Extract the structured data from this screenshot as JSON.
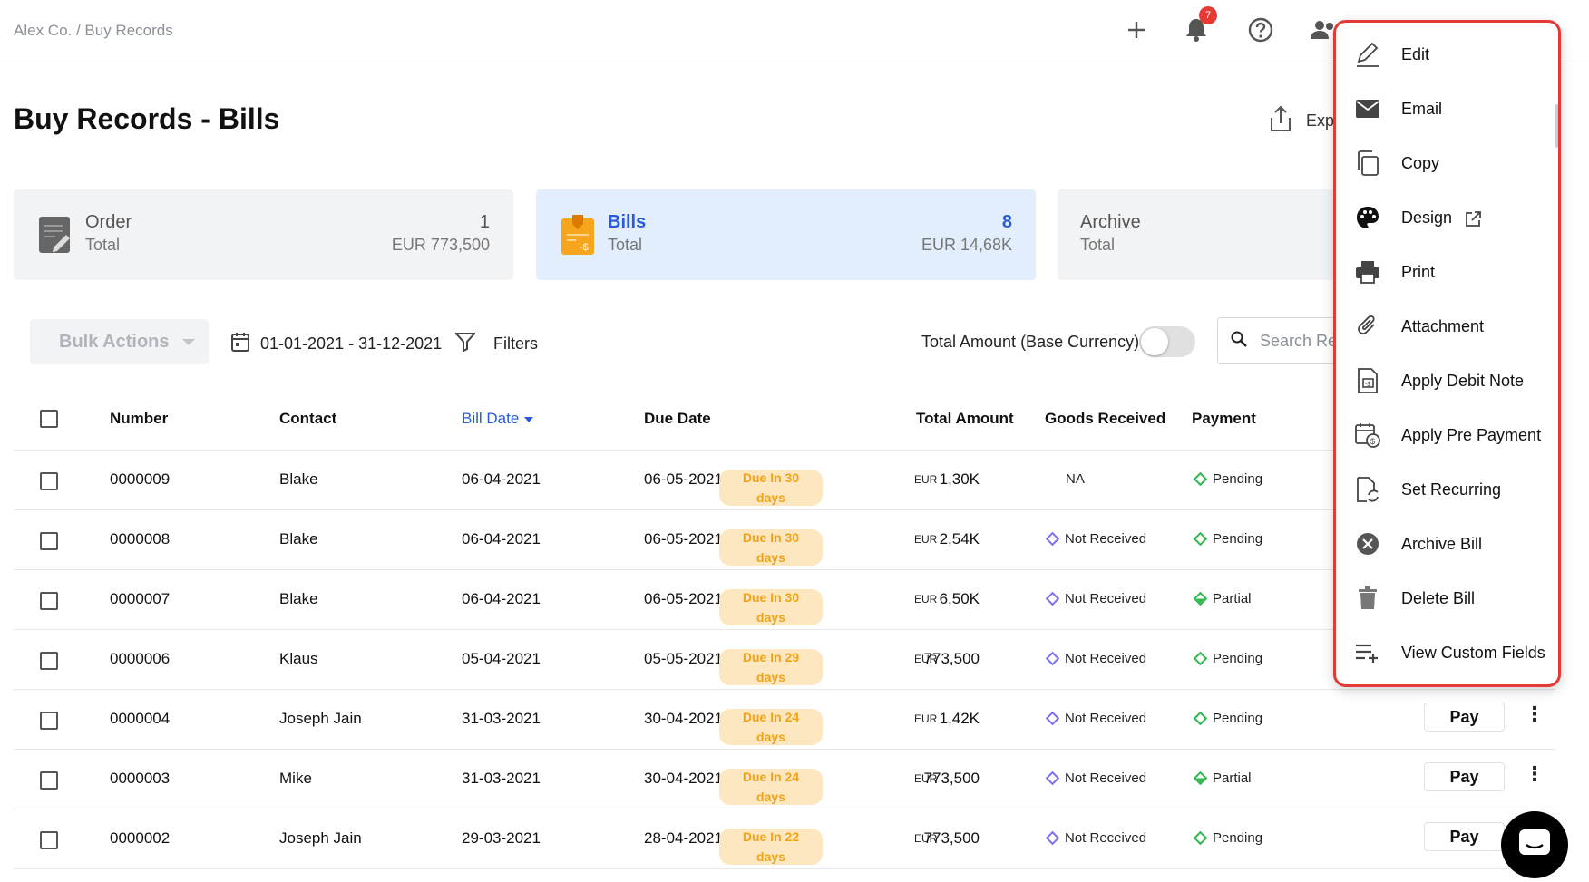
{
  "breadcrumb": "Alex Co. / Buy Records",
  "topbar": {
    "notifications_count": "7"
  },
  "page_title": "Buy Records - Bills",
  "export_label": "Exp",
  "cards": [
    {
      "name": "Order",
      "sub": "Total",
      "count": "1",
      "amount": "EUR 773,500"
    },
    {
      "name": "Bills",
      "sub": "Total",
      "count": "8",
      "amount": "EUR 14,68K"
    },
    {
      "name": "Archive",
      "sub": "Total"
    }
  ],
  "toolbar": {
    "bulk_actions": "Bulk Actions",
    "date_range": "01-01-2021 - 31-12-2021",
    "filters": "Filters",
    "toggle_label": "Total Amount (Base Currency)",
    "search_placeholder": "Search Re"
  },
  "table": {
    "headers": {
      "number": "Number",
      "contact": "Contact",
      "bill_date": "Bill Date",
      "due_date": "Due Date",
      "total_amount": "Total Amount",
      "goods_received": "Goods Received",
      "payment": "Payment"
    },
    "rows": [
      {
        "number": "0000009",
        "contact": "Blake",
        "bill_date": "06-04-2021",
        "due_date": "06-05-2021",
        "due_in": "Due In 30",
        "due_days": "days",
        "currency": "EUR",
        "amount": "1,30K",
        "goods": "NA",
        "payment": "Pending"
      },
      {
        "number": "0000008",
        "contact": "Blake",
        "bill_date": "06-04-2021",
        "due_date": "06-05-2021",
        "due_in": "Due In 30",
        "due_days": "days",
        "currency": "EUR",
        "amount": "2,54K",
        "goods": "Not Received",
        "payment": "Pending"
      },
      {
        "number": "0000007",
        "contact": "Blake",
        "bill_date": "06-04-2021",
        "due_date": "06-05-2021",
        "due_in": "Due In 30",
        "due_days": "days",
        "currency": "EUR",
        "amount": "6,50K",
        "goods": "Not Received",
        "payment": "Partial"
      },
      {
        "number": "0000006",
        "contact": "Klaus",
        "bill_date": "05-04-2021",
        "due_date": "05-05-2021",
        "due_in": "Due In 29",
        "due_days": "days",
        "currency": "EUR",
        "amount": "773,500",
        "goods": "Not Received",
        "payment": "Pending"
      },
      {
        "number": "0000004",
        "contact": "Joseph Jain",
        "bill_date": "31-03-2021",
        "due_date": "30-04-2021",
        "due_in": "Due In 24",
        "due_days": "days",
        "currency": "EUR",
        "amount": "1,42K",
        "goods": "Not Received",
        "payment": "Pending",
        "pay": "Pay"
      },
      {
        "number": "0000003",
        "contact": "Mike",
        "bill_date": "31-03-2021",
        "due_date": "30-04-2021",
        "due_in": "Due In 24",
        "due_days": "days",
        "currency": "EUR",
        "amount": "773,500",
        "goods": "Not Received",
        "payment": "Partial",
        "pay": "Pay"
      },
      {
        "number": "0000002",
        "contact": "Joseph Jain",
        "bill_date": "29-03-2021",
        "due_date": "28-04-2021",
        "due_in": "Due In 22",
        "due_days": "days",
        "currency": "EUR",
        "amount": "773,500",
        "goods": "Not Received",
        "payment": "Pending",
        "pay": "Pay"
      }
    ]
  },
  "menu": [
    {
      "label": "Edit",
      "icon": "pencil-icon"
    },
    {
      "label": "Email",
      "icon": "envelope-icon"
    },
    {
      "label": "Copy",
      "icon": "copy-icon"
    },
    {
      "label": "Design",
      "icon": "palette-icon"
    },
    {
      "label": "Print",
      "icon": "printer-icon"
    },
    {
      "label": "Attachment",
      "icon": "paperclip-icon"
    },
    {
      "label": "Apply Debit Note",
      "icon": "debit-note-icon"
    },
    {
      "label": "Apply Pre Payment",
      "icon": "calendar-payment-icon"
    },
    {
      "label": "Set Recurring",
      "icon": "recurring-icon"
    },
    {
      "label": "Archive Bill",
      "icon": "archive-x-icon"
    },
    {
      "label": "Delete Bill",
      "icon": "trash-icon"
    },
    {
      "label": "View Custom Fields",
      "icon": "custom-fields-icon"
    }
  ],
  "colors": {
    "accent": "#2a5bd7",
    "due_badge_bg": "#fde7c1",
    "due_badge_text": "#f0a316",
    "menu_outline": "#e53935"
  }
}
